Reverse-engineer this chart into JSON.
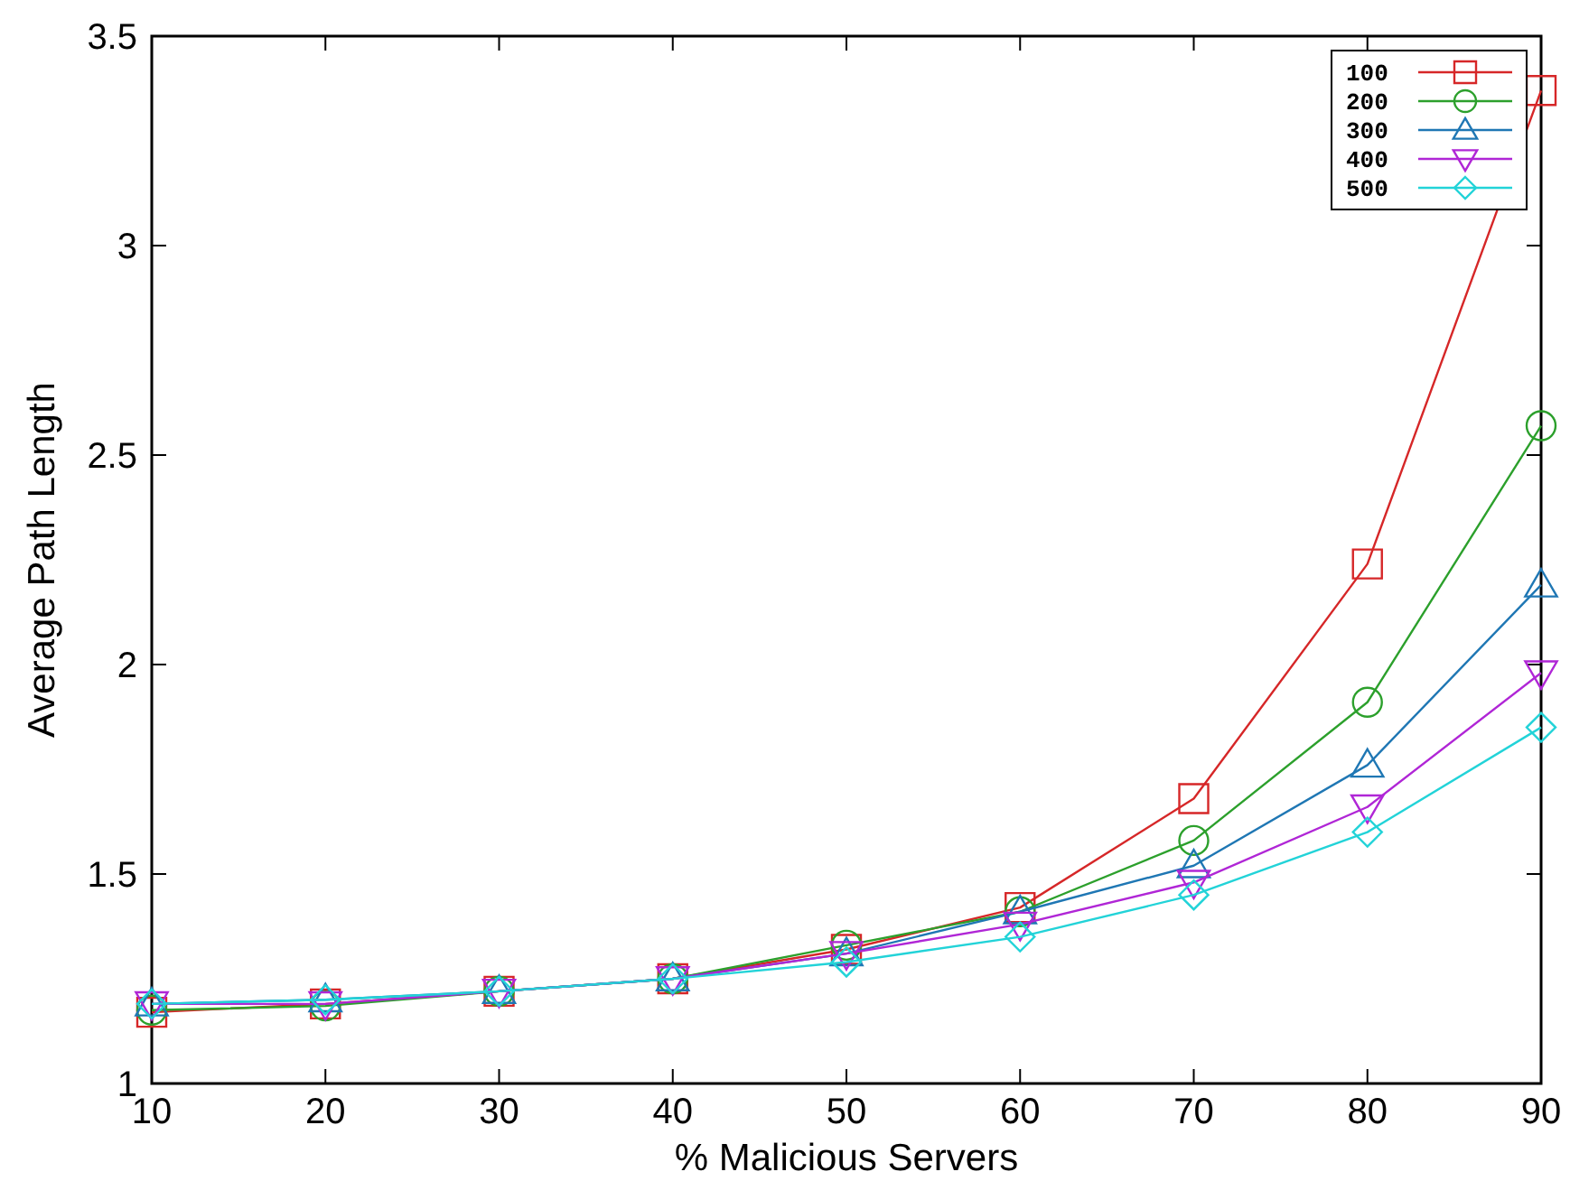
{
  "chart_data": {
    "type": "line",
    "xlabel": "% Malicious Servers",
    "ylabel": "Average Path Length",
    "x": [
      10,
      20,
      30,
      40,
      50,
      60,
      70,
      80,
      90
    ],
    "xlim": [
      10,
      90
    ],
    "xticks": [
      10,
      20,
      30,
      40,
      50,
      60,
      70,
      80,
      90
    ],
    "ylim": [
      1,
      3.5
    ],
    "yticks": [
      1,
      1.5,
      2,
      2.5,
      3,
      3.5
    ],
    "grid": false,
    "legend": "top right",
    "series": [
      {
        "name": "100",
        "color": "#d62728",
        "marker": "square",
        "values": [
          1.17,
          1.19,
          1.22,
          1.25,
          1.32,
          1.42,
          1.68,
          2.24,
          3.37
        ]
      },
      {
        "name": "200",
        "color": "#2ca02c",
        "marker": "circle",
        "values": [
          1.175,
          1.185,
          1.22,
          1.25,
          1.33,
          1.41,
          1.58,
          1.91,
          2.57
        ]
      },
      {
        "name": "300",
        "color": "#1f77b4",
        "marker": "triangle",
        "values": [
          1.19,
          1.2,
          1.22,
          1.25,
          1.31,
          1.41,
          1.52,
          1.76,
          2.19
        ]
      },
      {
        "name": "400",
        "color": "#b026d6",
        "marker": "triangle-down",
        "values": [
          1.19,
          1.19,
          1.22,
          1.25,
          1.31,
          1.38,
          1.48,
          1.66,
          1.98
        ]
      },
      {
        "name": "500",
        "color": "#22d3d8",
        "marker": "diamond",
        "values": [
          1.19,
          1.2,
          1.22,
          1.25,
          1.29,
          1.35,
          1.45,
          1.6,
          1.85
        ]
      }
    ]
  }
}
